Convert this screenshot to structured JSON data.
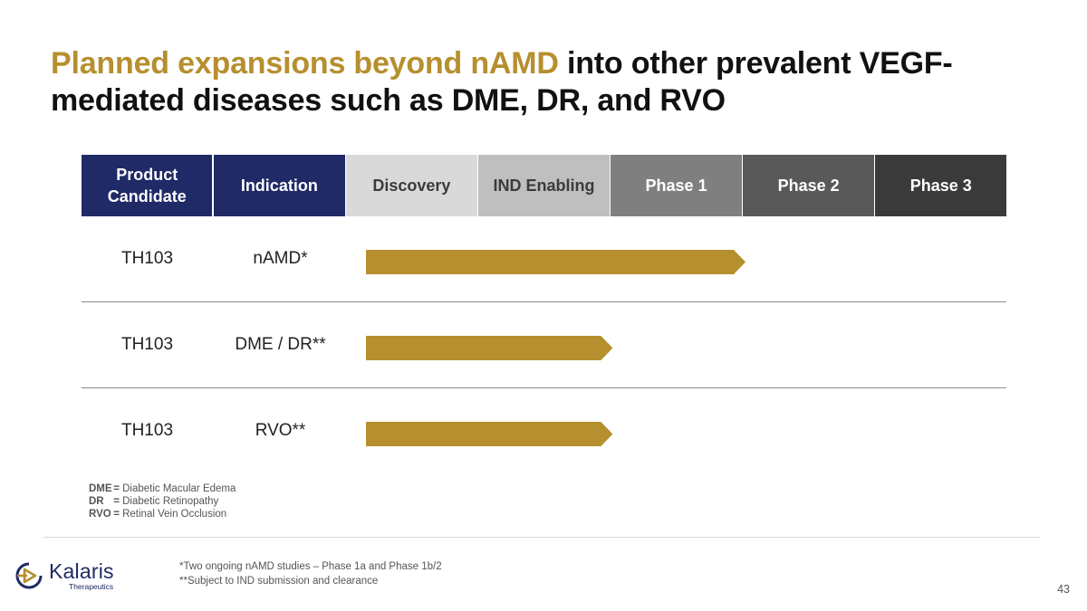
{
  "slide": {
    "title_accent": "Planned expansions beyond nAMD",
    "title_rest": " into other prevalent VEGF-mediated diseases such as DME, DR, and RVO",
    "page_number": "43"
  },
  "pipeline": {
    "headers": [
      "Product Candidate",
      "Indication",
      "Discovery",
      "IND Enabling",
      "Phase 1",
      "Phase 2",
      "Phase 3"
    ],
    "rows": [
      {
        "candidate": "TH103",
        "indication": "nAMD*",
        "progress_through": "Phase 1"
      },
      {
        "candidate": "TH103",
        "indication": "DME / DR**",
        "progress_through": "IND Enabling"
      },
      {
        "candidate": "TH103",
        "indication": "RVO**",
        "progress_through": "IND Enabling"
      }
    ],
    "colors": {
      "bar": "#b68f2e",
      "header_navy": "#1f2a66"
    }
  },
  "abbreviations": [
    {
      "key": "DME",
      "sep": " = ",
      "value": "Diabetic Macular Edema"
    },
    {
      "key": "DR",
      "sep": " = ",
      "value": "Diabetic Retinopathy"
    },
    {
      "key": "RVO",
      "sep": " = ",
      "value": "Retinal Vein Occlusion"
    }
  ],
  "footnotes": [
    "*Two ongoing nAMD studies – Phase 1a and Phase 1b/2",
    "**Subject to IND submission and clearance"
  ],
  "logo": {
    "name": "Kalaris",
    "subtitle": "Therapeutics"
  }
}
